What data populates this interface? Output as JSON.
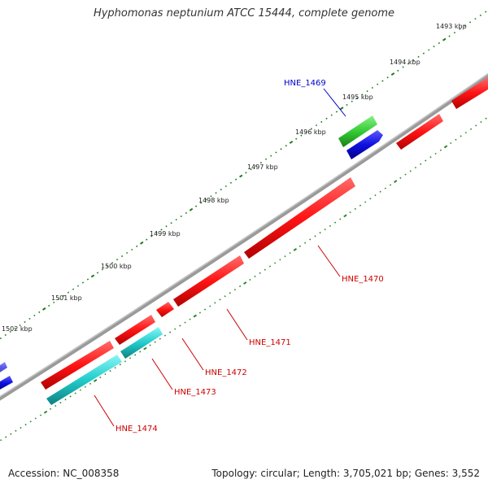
{
  "title": "Hyphomonas neptunium ATCC 15444, complete genome",
  "footer": {
    "accession": "Accession: NC_008358",
    "summary": "Topology: circular; Length: 3,705,021 bp; Genes: 3,552"
  },
  "colors": {
    "backbone": "#8a8a8a",
    "tick_major": "#1a7a1a",
    "tick_minor": "#2a8a2a",
    "gene_red": "#ff1414",
    "gene_blue": "#1010e0",
    "gene_green": "#33cc33",
    "gene_cyan": "#22cccc",
    "label_red": "#cc0000",
    "label_blue": "#0000cc"
  },
  "scale_labels": [
    "1493 kbp",
    "1494 kbp",
    "1495 kbp",
    "1496 kbp",
    "1497 kbp",
    "1498 kbp",
    "1499 kbp",
    "1500 kbp",
    "1501 kbp",
    "1502 kbp"
  ],
  "genes": [
    {
      "name": "HNE_1469",
      "color": "green",
      "labeled": true,
      "label_color": "blue"
    },
    {
      "name": "HNE_1470",
      "color": "red",
      "labeled": true,
      "label_color": "red"
    },
    {
      "name": "HNE_1471",
      "color": "red",
      "labeled": true,
      "label_color": "red"
    },
    {
      "name": "HNE_1472",
      "color": "red",
      "labeled": true,
      "label_color": "red"
    },
    {
      "name": "HNE_1473",
      "color": "cyan",
      "labeled": true,
      "label_color": "red"
    },
    {
      "name": "HNE_1474",
      "color": "cyan",
      "labeled": true,
      "label_color": "red"
    }
  ]
}
